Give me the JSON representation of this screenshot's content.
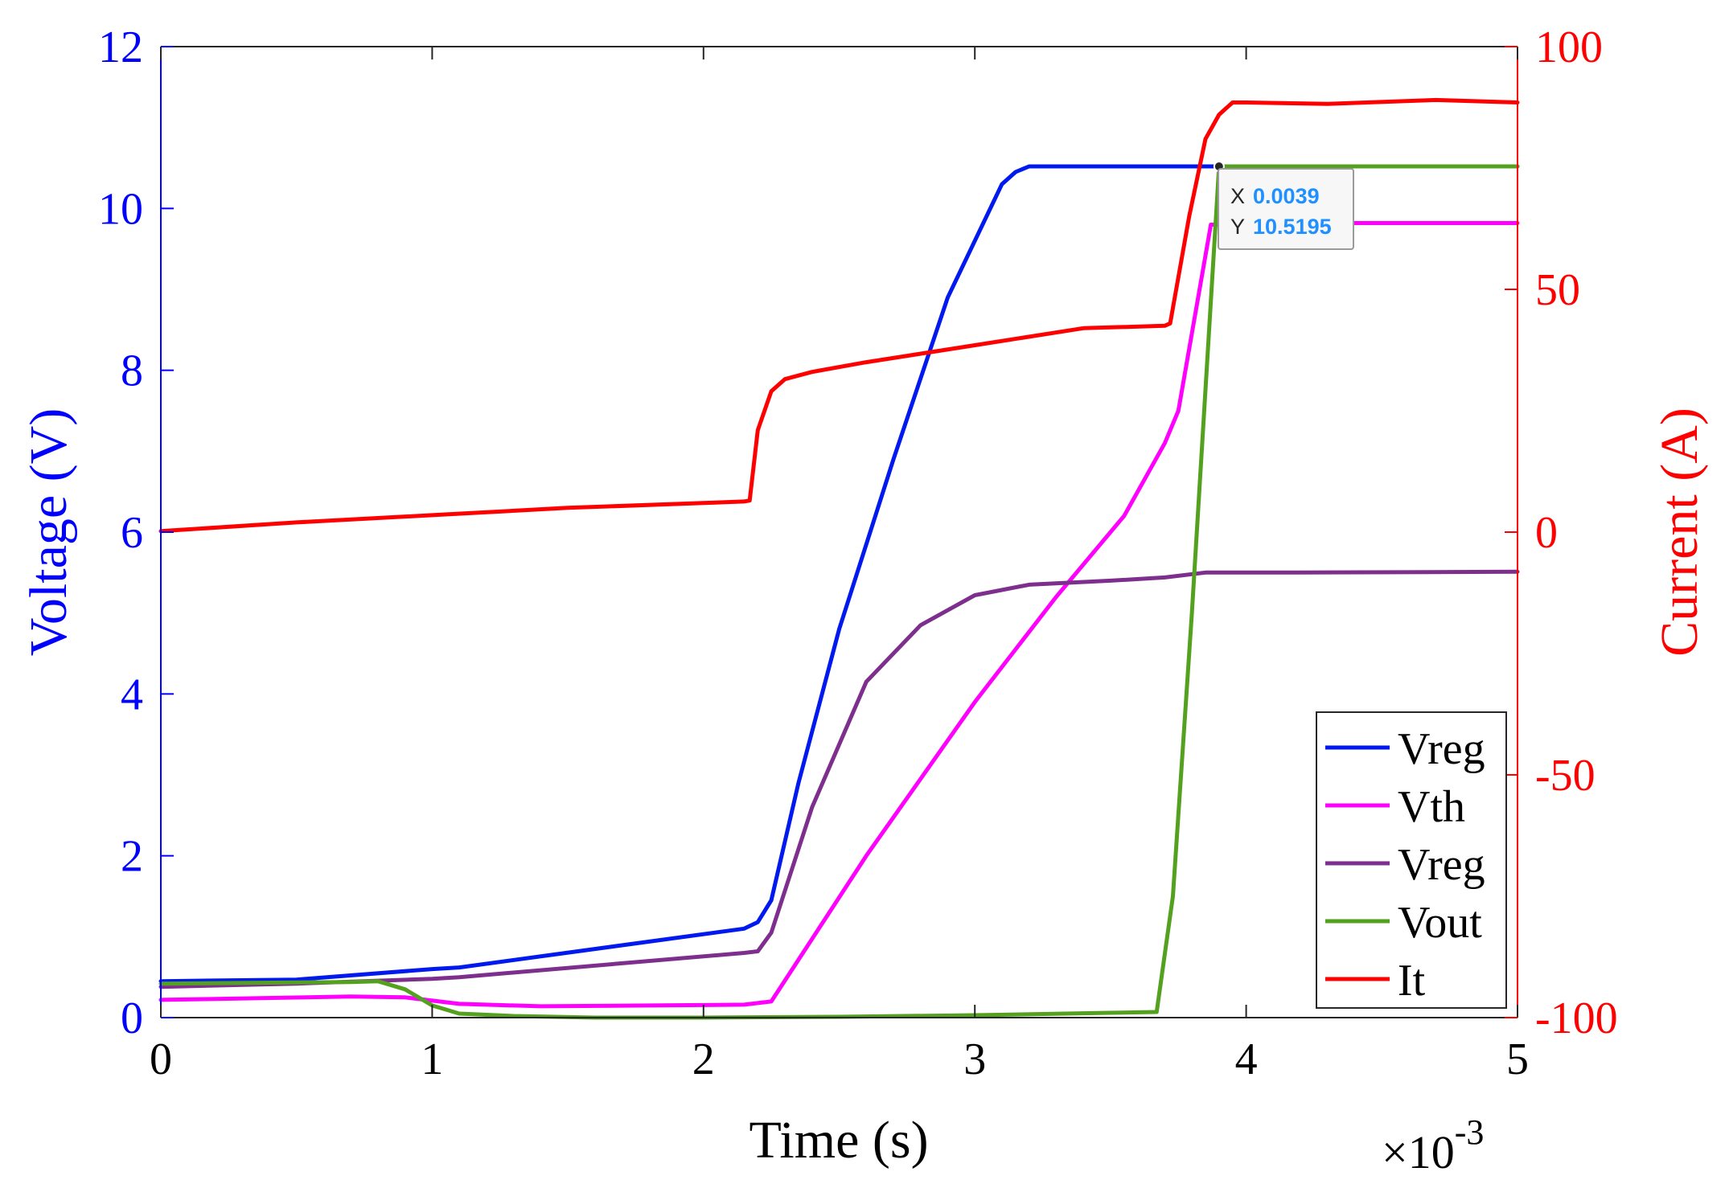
{
  "chart_data": {
    "type": "line",
    "xlabel": "Time (s)",
    "x_multiplier_label": "×10",
    "x_multiplier_exponent": "-3",
    "xlim": [
      0,
      5
    ],
    "xticks": [
      0,
      1,
      2,
      3,
      4,
      5
    ],
    "xtick_labels": [
      "0",
      "1",
      "2",
      "3",
      "4",
      "5"
    ],
    "ylabel_left": "Voltage (V)",
    "ylim_left": [
      0,
      12
    ],
    "yticks_left": [
      0,
      2,
      4,
      6,
      8,
      10,
      12
    ],
    "ytick_labels_left": [
      "0",
      "2",
      "4",
      "6",
      "8",
      "10",
      "12"
    ],
    "ylabel_right": "Current (A)",
    "ylim_right": [
      -100,
      100
    ],
    "yticks_right": [
      -100,
      -50,
      0,
      50,
      100
    ],
    "ytick_labels_right": [
      "-100",
      "-50",
      "0",
      "50",
      "100"
    ],
    "grid": false,
    "legend_position": "bottom-right",
    "colors": {
      "left_axis": "#0000ff",
      "right_axis": "#ff0000",
      "axis_black": "#262626"
    },
    "series": [
      {
        "name": "Vreg",
        "axis": "left",
        "color": "#0019ee",
        "x": [
          0,
          0.5,
          1,
          1.1,
          2.15,
          2.2,
          2.25,
          2.35,
          2.5,
          2.7,
          2.9,
          3.1,
          3.15,
          3.2,
          3.5,
          3.9,
          5
        ],
        "y": [
          0.45,
          0.47,
          0.6,
          0.62,
          1.1,
          1.18,
          1.45,
          2.9,
          4.8,
          6.9,
          8.9,
          10.3,
          10.45,
          10.52,
          10.52,
          10.52,
          10.52
        ]
      },
      {
        "name": "Vth",
        "axis": "left",
        "color": "#ff00ff",
        "x": [
          0,
          0.7,
          0.9,
          1.1,
          1.4,
          1.8,
          2.15,
          2.25,
          2.6,
          3.0,
          3.3,
          3.55,
          3.7,
          3.75,
          3.87,
          4.2,
          5
        ],
        "y": [
          0.22,
          0.26,
          0.25,
          0.17,
          0.14,
          0.15,
          0.16,
          0.2,
          2.0,
          3.9,
          5.2,
          6.2,
          7.1,
          7.5,
          9.8,
          9.82,
          9.82
        ]
      },
      {
        "name": "Vreg",
        "axis": "left",
        "color": "#7e2f8e",
        "x": [
          0,
          0.5,
          1,
          1.1,
          2.15,
          2.2,
          2.25,
          2.4,
          2.6,
          2.8,
          3.0,
          3.2,
          3.5,
          3.7,
          3.85,
          4.2,
          5
        ],
        "y": [
          0.38,
          0.42,
          0.48,
          0.5,
          0.8,
          0.82,
          1.05,
          2.6,
          4.15,
          4.85,
          5.22,
          5.35,
          5.4,
          5.44,
          5.5,
          5.5,
          5.51
        ]
      },
      {
        "name": "Vout",
        "axis": "left",
        "color": "#53a11f",
        "x": [
          0,
          0.7,
          0.8,
          0.9,
          1.0,
          1.1,
          1.3,
          1.6,
          2.0,
          2.5,
          3.0,
          3.5,
          3.67,
          3.73,
          3.8,
          3.9,
          5
        ],
        "y": [
          0.42,
          0.44,
          0.45,
          0.35,
          0.15,
          0.05,
          0.02,
          0.0,
          0.0,
          0.01,
          0.03,
          0.06,
          0.07,
          1.5,
          5.0,
          10.5195,
          10.5195
        ]
      },
      {
        "name": "It",
        "axis": "right",
        "color": "#ff0000",
        "x": [
          0,
          0.5,
          1,
          1.5,
          2.0,
          2.15,
          2.17,
          2.2,
          2.25,
          2.3,
          2.4,
          2.6,
          3.0,
          3.4,
          3.7,
          3.72,
          3.79,
          3.85,
          3.9,
          3.95,
          4.0,
          4.3,
          4.7,
          5.0
        ],
        "y": [
          0.2,
          2,
          3.5,
          5,
          6,
          6.3,
          6.5,
          21,
          29,
          31.5,
          33,
          35,
          38.5,
          42,
          42.5,
          43,
          65,
          81,
          86,
          88.5,
          88.5,
          88.2,
          89,
          88.5
        ]
      }
    ],
    "datatip": {
      "x_label": "X",
      "x_value": "0.0039",
      "y_label": "Y",
      "y_value": "10.5195",
      "x": 0.0039,
      "y": 10.5195,
      "value_color": "#1e90ff"
    }
  }
}
